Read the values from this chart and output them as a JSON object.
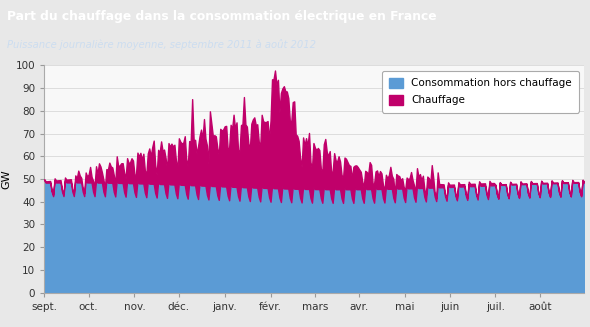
{
  "title": "Part du chauffage dans la consommation électrique en France",
  "subtitle": "Puissance journalière moyenne, septembre 2011 à août 2012",
  "ylabel": "GW",
  "title_bg_color": "#1e4f9c",
  "title_text_color": "#ffffff",
  "subtitle_text_color": "#ccddf0",
  "blue_color": "#5b9bd5",
  "magenta_color": "#c0006a",
  "ylim": [
    0,
    100
  ],
  "xtick_labels": [
    "sept.",
    "oct.",
    "nov.",
    "déc.",
    "janv.",
    "févr.",
    "mars",
    "avr.",
    "mai",
    "juin",
    "juil.",
    "août"
  ],
  "grid_color": "#d8d8d8",
  "figure_bg_color": "#e8e8e8",
  "plot_bg_color": "#f8f8f8"
}
